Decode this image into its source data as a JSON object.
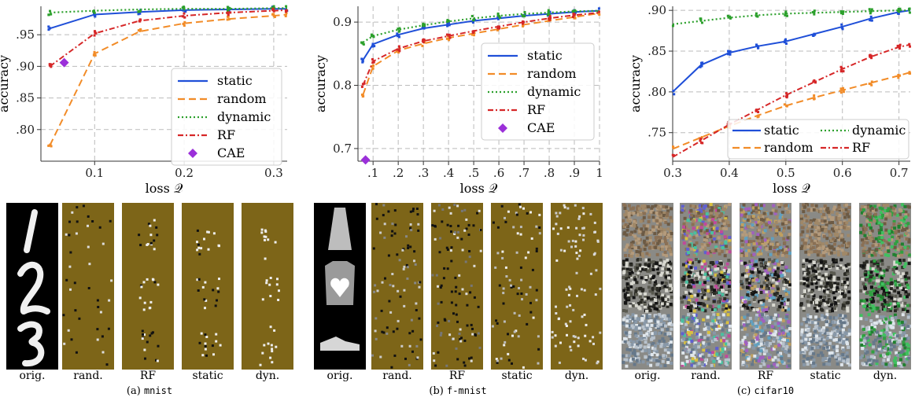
{
  "chart_data": [
    {
      "type": "line",
      "xlabel": "loss",
      "xlabel_symbol": "𝒬",
      "ylabel": "accuracy",
      "xlim": [
        0.04,
        0.315
      ],
      "ylim": [
        0.75,
        0.995
      ],
      "xticks": [
        0.1,
        0.2,
        0.3
      ],
      "xtick_labels": [
        "0.1",
        "0.2",
        "0.3"
      ],
      "yticks": [
        0.8,
        0.85,
        0.9,
        0.95
      ],
      "ytick_labels": [
        ".80",
        ".85",
        ".90",
        ".95"
      ],
      "grid": true,
      "legend_position": "lower-right",
      "series": [
        {
          "name": "static",
          "color": "#1f4fd8",
          "dash": "solid",
          "x": [
            0.05,
            0.1,
            0.15,
            0.2,
            0.25,
            0.3,
            0.315
          ],
          "y": [
            0.96,
            0.982,
            0.986,
            0.989,
            0.99,
            0.991,
            0.991
          ]
        },
        {
          "name": "random",
          "color": "#f28c28",
          "dash": "dashed",
          "x": [
            0.05,
            0.1,
            0.15,
            0.2,
            0.25,
            0.3,
            0.315
          ],
          "y": [
            0.775,
            0.92,
            0.955,
            0.968,
            0.975,
            0.98,
            0.982
          ]
        },
        {
          "name": "dynamic",
          "color": "#2ca02c",
          "dash": "dotted",
          "x": [
            0.05,
            0.1,
            0.15,
            0.2,
            0.25,
            0.3,
            0.315
          ],
          "y": [
            0.985,
            0.988,
            0.99,
            0.991,
            0.991,
            0.992,
            0.992
          ]
        },
        {
          "name": "RF",
          "color": "#d62728",
          "dash": "dashdot",
          "x": [
            0.05,
            0.1,
            0.15,
            0.2,
            0.25,
            0.3,
            0.315
          ],
          "y": [
            0.9,
            0.952,
            0.972,
            0.98,
            0.985,
            0.988,
            0.989
          ]
        }
      ],
      "markers": [
        {
          "name": "CAE",
          "color": "#9b30d9",
          "shape": "diamond",
          "x": 0.066,
          "y": 0.906
        }
      ]
    },
    {
      "type": "line",
      "xlabel": "loss",
      "xlabel_symbol": "𝒬",
      "ylabel": "accuracy",
      "xlim": [
        0.04,
        1.0
      ],
      "ylim": [
        0.68,
        0.925
      ],
      "xticks": [
        0.1,
        0.2,
        0.3,
        0.4,
        0.5,
        0.6,
        0.7,
        0.8,
        0.9,
        1.0
      ],
      "xtick_labels": [
        ".1",
        ".2",
        ".3",
        ".4",
        ".5",
        ".6",
        ".7",
        ".8",
        ".9",
        "1"
      ],
      "yticks": [
        0.7,
        0.8,
        0.9
      ],
      "ytick_labels": [
        "0.7",
        "0.8",
        "0.9"
      ],
      "grid": true,
      "legend_position": "lower-right",
      "series": [
        {
          "name": "static",
          "color": "#1f4fd8",
          "dash": "solid",
          "x": [
            0.06,
            0.1,
            0.2,
            0.3,
            0.4,
            0.5,
            0.6,
            0.7,
            0.8,
            0.9,
            1.0
          ],
          "y": [
            0.84,
            0.865,
            0.88,
            0.89,
            0.896,
            0.902,
            0.906,
            0.91,
            0.913,
            0.916,
            0.918
          ]
        },
        {
          "name": "random",
          "color": "#f28c28",
          "dash": "dashed",
          "x": [
            0.06,
            0.1,
            0.2,
            0.3,
            0.4,
            0.5,
            0.6,
            0.7,
            0.8,
            0.9,
            1.0
          ],
          "y": [
            0.785,
            0.83,
            0.855,
            0.866,
            0.875,
            0.882,
            0.889,
            0.896,
            0.902,
            0.908,
            0.914
          ]
        },
        {
          "name": "dynamic",
          "color": "#2ca02c",
          "dash": "dotted",
          "x": [
            0.06,
            0.1,
            0.2,
            0.3,
            0.4,
            0.5,
            0.6,
            0.7,
            0.8,
            0.9,
            1.0
          ],
          "y": [
            0.868,
            0.878,
            0.888,
            0.895,
            0.901,
            0.906,
            0.91,
            0.913,
            0.915,
            0.917,
            0.918
          ]
        },
        {
          "name": "RF",
          "color": "#d62728",
          "dash": "dashdot",
          "x": [
            0.06,
            0.1,
            0.2,
            0.3,
            0.4,
            0.5,
            0.6,
            0.7,
            0.8,
            0.9,
            1.0
          ],
          "y": [
            0.8,
            0.838,
            0.858,
            0.87,
            0.878,
            0.886,
            0.893,
            0.9,
            0.906,
            0.911,
            0.915
          ]
        }
      ],
      "markers": [
        {
          "name": "CAE",
          "color": "#9b30d9",
          "shape": "diamond",
          "x": 0.07,
          "y": 0.682
        }
      ]
    },
    {
      "type": "line",
      "xlabel": "loss",
      "xlabel_symbol": "𝒬",
      "ylabel": "accuracy",
      "xlim": [
        0.3,
        0.72
      ],
      "ylim": [
        0.715,
        0.905
      ],
      "xticks": [
        0.3,
        0.4,
        0.5,
        0.6,
        0.7
      ],
      "xtick_labels": [
        "0.3",
        "0.4",
        "0.5",
        "0.6",
        "0.7"
      ],
      "yticks": [
        0.75,
        0.8,
        0.85,
        0.9
      ],
      "ytick_labels": [
        ".75",
        ".80",
        ".85",
        ".90"
      ],
      "grid": true,
      "legend_position": "bottom-right",
      "series": [
        {
          "name": "static",
          "color": "#1f4fd8",
          "dash": "solid",
          "x": [
            0.3,
            0.35,
            0.4,
            0.45,
            0.5,
            0.55,
            0.6,
            0.65,
            0.7,
            0.72
          ],
          "y": [
            0.8,
            0.833,
            0.848,
            0.856,
            0.862,
            0.871,
            0.88,
            0.89,
            0.898,
            0.9
          ]
        },
        {
          "name": "random",
          "color": "#f28c28",
          "dash": "dashed",
          "x": [
            0.3,
            0.35,
            0.4,
            0.45,
            0.5,
            0.55,
            0.6,
            0.65,
            0.7,
            0.72
          ],
          "y": [
            0.73,
            0.744,
            0.758,
            0.771,
            0.783,
            0.793,
            0.802,
            0.811,
            0.82,
            0.824
          ]
        },
        {
          "name": "dynamic",
          "color": "#2ca02c",
          "dash": "dotted",
          "x": [
            0.3,
            0.35,
            0.4,
            0.45,
            0.5,
            0.55,
            0.6,
            0.65,
            0.7,
            0.72
          ],
          "y": [
            0.883,
            0.887,
            0.891,
            0.894,
            0.896,
            0.897,
            0.898,
            0.899,
            0.9,
            0.9
          ]
        },
        {
          "name": "RF",
          "color": "#d62728",
          "dash": "dashdot",
          "x": [
            0.3,
            0.35,
            0.4,
            0.45,
            0.5,
            0.55,
            0.6,
            0.65,
            0.7,
            0.72
          ],
          "y": [
            0.72,
            0.74,
            0.76,
            0.778,
            0.796,
            0.812,
            0.828,
            0.843,
            0.855,
            0.858
          ]
        }
      ],
      "markers": []
    }
  ],
  "panels": [
    {
      "caption_prefix": "(a)",
      "caption_dataset": "mnist",
      "columns": [
        "orig.",
        "rand.",
        "RF",
        "static",
        "dyn."
      ]
    },
    {
      "caption_prefix": "(b)",
      "caption_dataset": "f-mnist",
      "columns": [
        "orig.",
        "rand.",
        "RF",
        "static",
        "dyn."
      ]
    },
    {
      "caption_prefix": "(c)",
      "caption_dataset": "cifar10",
      "columns": [
        "orig.",
        "rand.",
        "RF",
        "static",
        "dyn."
      ]
    }
  ],
  "colors": {
    "mask_background": "#7d6518",
    "cifar_background": "#8a8a86"
  }
}
